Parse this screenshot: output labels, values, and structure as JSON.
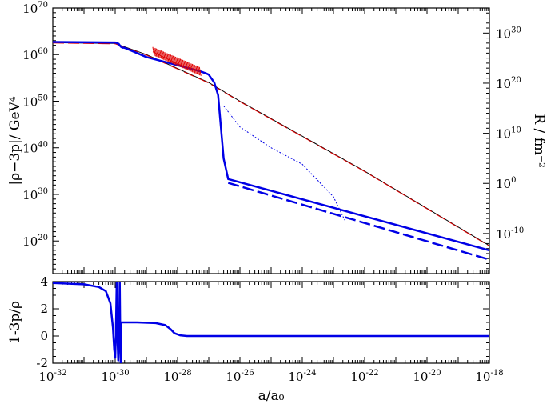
{
  "chart_data": [
    {
      "type": "line",
      "panel": "top",
      "xscale": "log",
      "yscale": "log",
      "xlim": [
        1e-32,
        1e-18
      ],
      "ylim": [
        10000000000000.0,
        1e+70
      ],
      "y2lim": [
        1e-18,
        1e+35
      ],
      "xlabel": "",
      "ylabel": "|ρ−3p|/ GeV⁴",
      "y2label": "R / fm⁻²",
      "y_ticks": [
        {
          "v": 1e+20,
          "base": "10",
          "exp": "20"
        },
        {
          "v": 1e+30,
          "base": "10",
          "exp": "30"
        },
        {
          "v": 1e+40,
          "base": "10",
          "exp": "40"
        },
        {
          "v": 1e+50,
          "base": "10",
          "exp": "50"
        },
        {
          "v": 1e+60,
          "base": "10",
          "exp": "60"
        },
        {
          "v": 1e+70,
          "base": "10",
          "exp": "70"
        }
      ],
      "y2_ticks": [
        {
          "v": 1e-10,
          "base": "10",
          "exp": "-10"
        },
        {
          "v": 1.0,
          "base": "10",
          "exp": "0"
        },
        {
          "v": 10000000000.0,
          "base": "10",
          "exp": "10"
        },
        {
          "v": 1e+20,
          "base": "10",
          "exp": "20"
        },
        {
          "v": 1e+30,
          "base": "10",
          "exp": "30"
        }
      ],
      "series": [
        {
          "color": "#000000",
          "style": "solid",
          "width": 1,
          "points": [
            [
              1e-32,
              3.5e+62
            ],
            [
              1e-30,
              2.5e+62
            ],
            [
              1e-29,
              1e+60
            ],
            [
              1e-28,
              1e+57
            ],
            [
              1e-27,
              1e+54
            ],
            [
              1e-26,
              1e+50
            ],
            [
              1e-22,
              1e+35
            ],
            [
              1e-18,
              1e+19
            ]
          ]
        },
        {
          "color": "#e00000",
          "style": "dashed",
          "width": 1,
          "points": [
            [
              1e-32,
              3e+62
            ],
            [
              1e-30,
              2e+62
            ],
            [
              1e-29,
              8e+59
            ],
            [
              1e-28,
              8e+56
            ],
            [
              1e-27,
              8e+53
            ],
            [
              1e-26,
              8e+49
            ],
            [
              1e-22,
              8e+34
            ],
            [
              1e-18,
              8e+18
            ]
          ]
        },
        {
          "color": "#e00000",
          "style": "solid",
          "width": 1,
          "note": "oscillating segment",
          "points": [
            [
              1.6e-29,
              4e+60
            ],
            [
              1e-28,
              1e+58
            ],
            [
              5e-28,
              2e+56
            ]
          ]
        },
        {
          "color": "#0000e6",
          "style": "solid",
          "width": 2.5,
          "points": [
            [
              1e-32,
              5e+62
            ],
            [
              1e-30,
              4e+62
            ],
            [
              1.3e-30,
              2e+62
            ],
            [
              1.5e-30,
              5e+61
            ],
            [
              1.7e-30,
              3e+61
            ],
            [
              1.9e-30,
              3e+61
            ],
            [
              2.3e-30,
              2e+61
            ],
            [
              1e-29,
              3e+59
            ],
            [
              1e-28,
              5e+57
            ],
            [
              5e-28,
              3e+56
            ],
            [
              8e-28,
              1e+56
            ],
            [
              1e-27,
              5e+55
            ],
            [
              1.5e-27,
              1e+54
            ],
            [
              2e-27,
              2e+51
            ],
            [
              3e-27,
              5e+37
            ],
            [
              4.2e-27,
              2e+33
            ],
            [
              1e-18,
              1e+18
            ]
          ]
        },
        {
          "color": "#0000e6",
          "style": "dashed",
          "width": 2.5,
          "points": [
            [
              4.2e-27,
              3e+32
            ],
            [
              1e-18,
              1e+16
            ]
          ]
        },
        {
          "color": "#0000e6",
          "style": "dotted",
          "width": 1,
          "points": [
            [
              3e-27,
              1e+49
            ],
            [
              1e-26,
              3e+44
            ],
            [
              1e-25,
              1e+40
            ],
            [
              1e-24,
              3e+36
            ],
            [
              1e-23,
              3e+29
            ],
            [
              2.3e-23,
              3e+24
            ]
          ]
        }
      ]
    },
    {
      "type": "line",
      "panel": "bottom",
      "xscale": "log",
      "xlim": [
        1e-32,
        1e-18
      ],
      "ylim": [
        -2,
        4
      ],
      "xlabel": "a/a₀",
      "ylabel": "1-3p/ρ",
      "x_ticks": [
        {
          "v": 1e-32,
          "base": "10",
          "exp": "-32"
        },
        {
          "v": 1e-30,
          "base": "10",
          "exp": "-30"
        },
        {
          "v": 1e-28,
          "base": "10",
          "exp": "-28"
        },
        {
          "v": 1e-26,
          "base": "10",
          "exp": "-26"
        },
        {
          "v": 1e-24,
          "base": "10",
          "exp": "-24"
        },
        {
          "v": 1e-22,
          "base": "10",
          "exp": "-22"
        },
        {
          "v": 1e-20,
          "base": "10",
          "exp": "-20"
        },
        {
          "v": 1e-18,
          "base": "10",
          "exp": "-18"
        }
      ],
      "y_ticks": [
        "-2",
        "0",
        "2",
        "4"
      ],
      "series": [
        {
          "color": "#0000e6",
          "style": "solid",
          "width": 2.5,
          "points": [
            [
              1e-32,
              3.9
            ],
            [
              1e-31,
              3.8
            ],
            [
              3e-31,
              3.6
            ],
            [
              5e-31,
              3.3
            ],
            [
              7e-31,
              2.4
            ],
            [
              8.5e-31,
              0.6
            ],
            [
              9.3e-31,
              -1.0
            ],
            [
              1e-30,
              -1.6
            ],
            [
              1.05e-30,
              0
            ],
            [
              1.12e-30,
              4
            ],
            [
              1.18e-30,
              0
            ],
            [
              1.25e-30,
              -1.8
            ],
            [
              1.33e-30,
              0
            ],
            [
              1.4e-30,
              4
            ],
            [
              1.45e-30,
              0
            ],
            [
              1.5e-30,
              -2
            ],
            [
              1.53e-30,
              1.0
            ],
            [
              5e-30,
              1.0
            ],
            [
              2e-29,
              0.95
            ],
            [
              4e-29,
              0.8
            ],
            [
              6e-29,
              0.5
            ],
            [
              8e-29,
              0.2
            ],
            [
              1.2e-28,
              0.05
            ],
            [
              2e-28,
              0.0
            ],
            [
              1e-18,
              0.0
            ]
          ]
        }
      ]
    }
  ],
  "colors": {
    "black": "#000000",
    "red": "#e00000",
    "blue": "#0000e6"
  }
}
